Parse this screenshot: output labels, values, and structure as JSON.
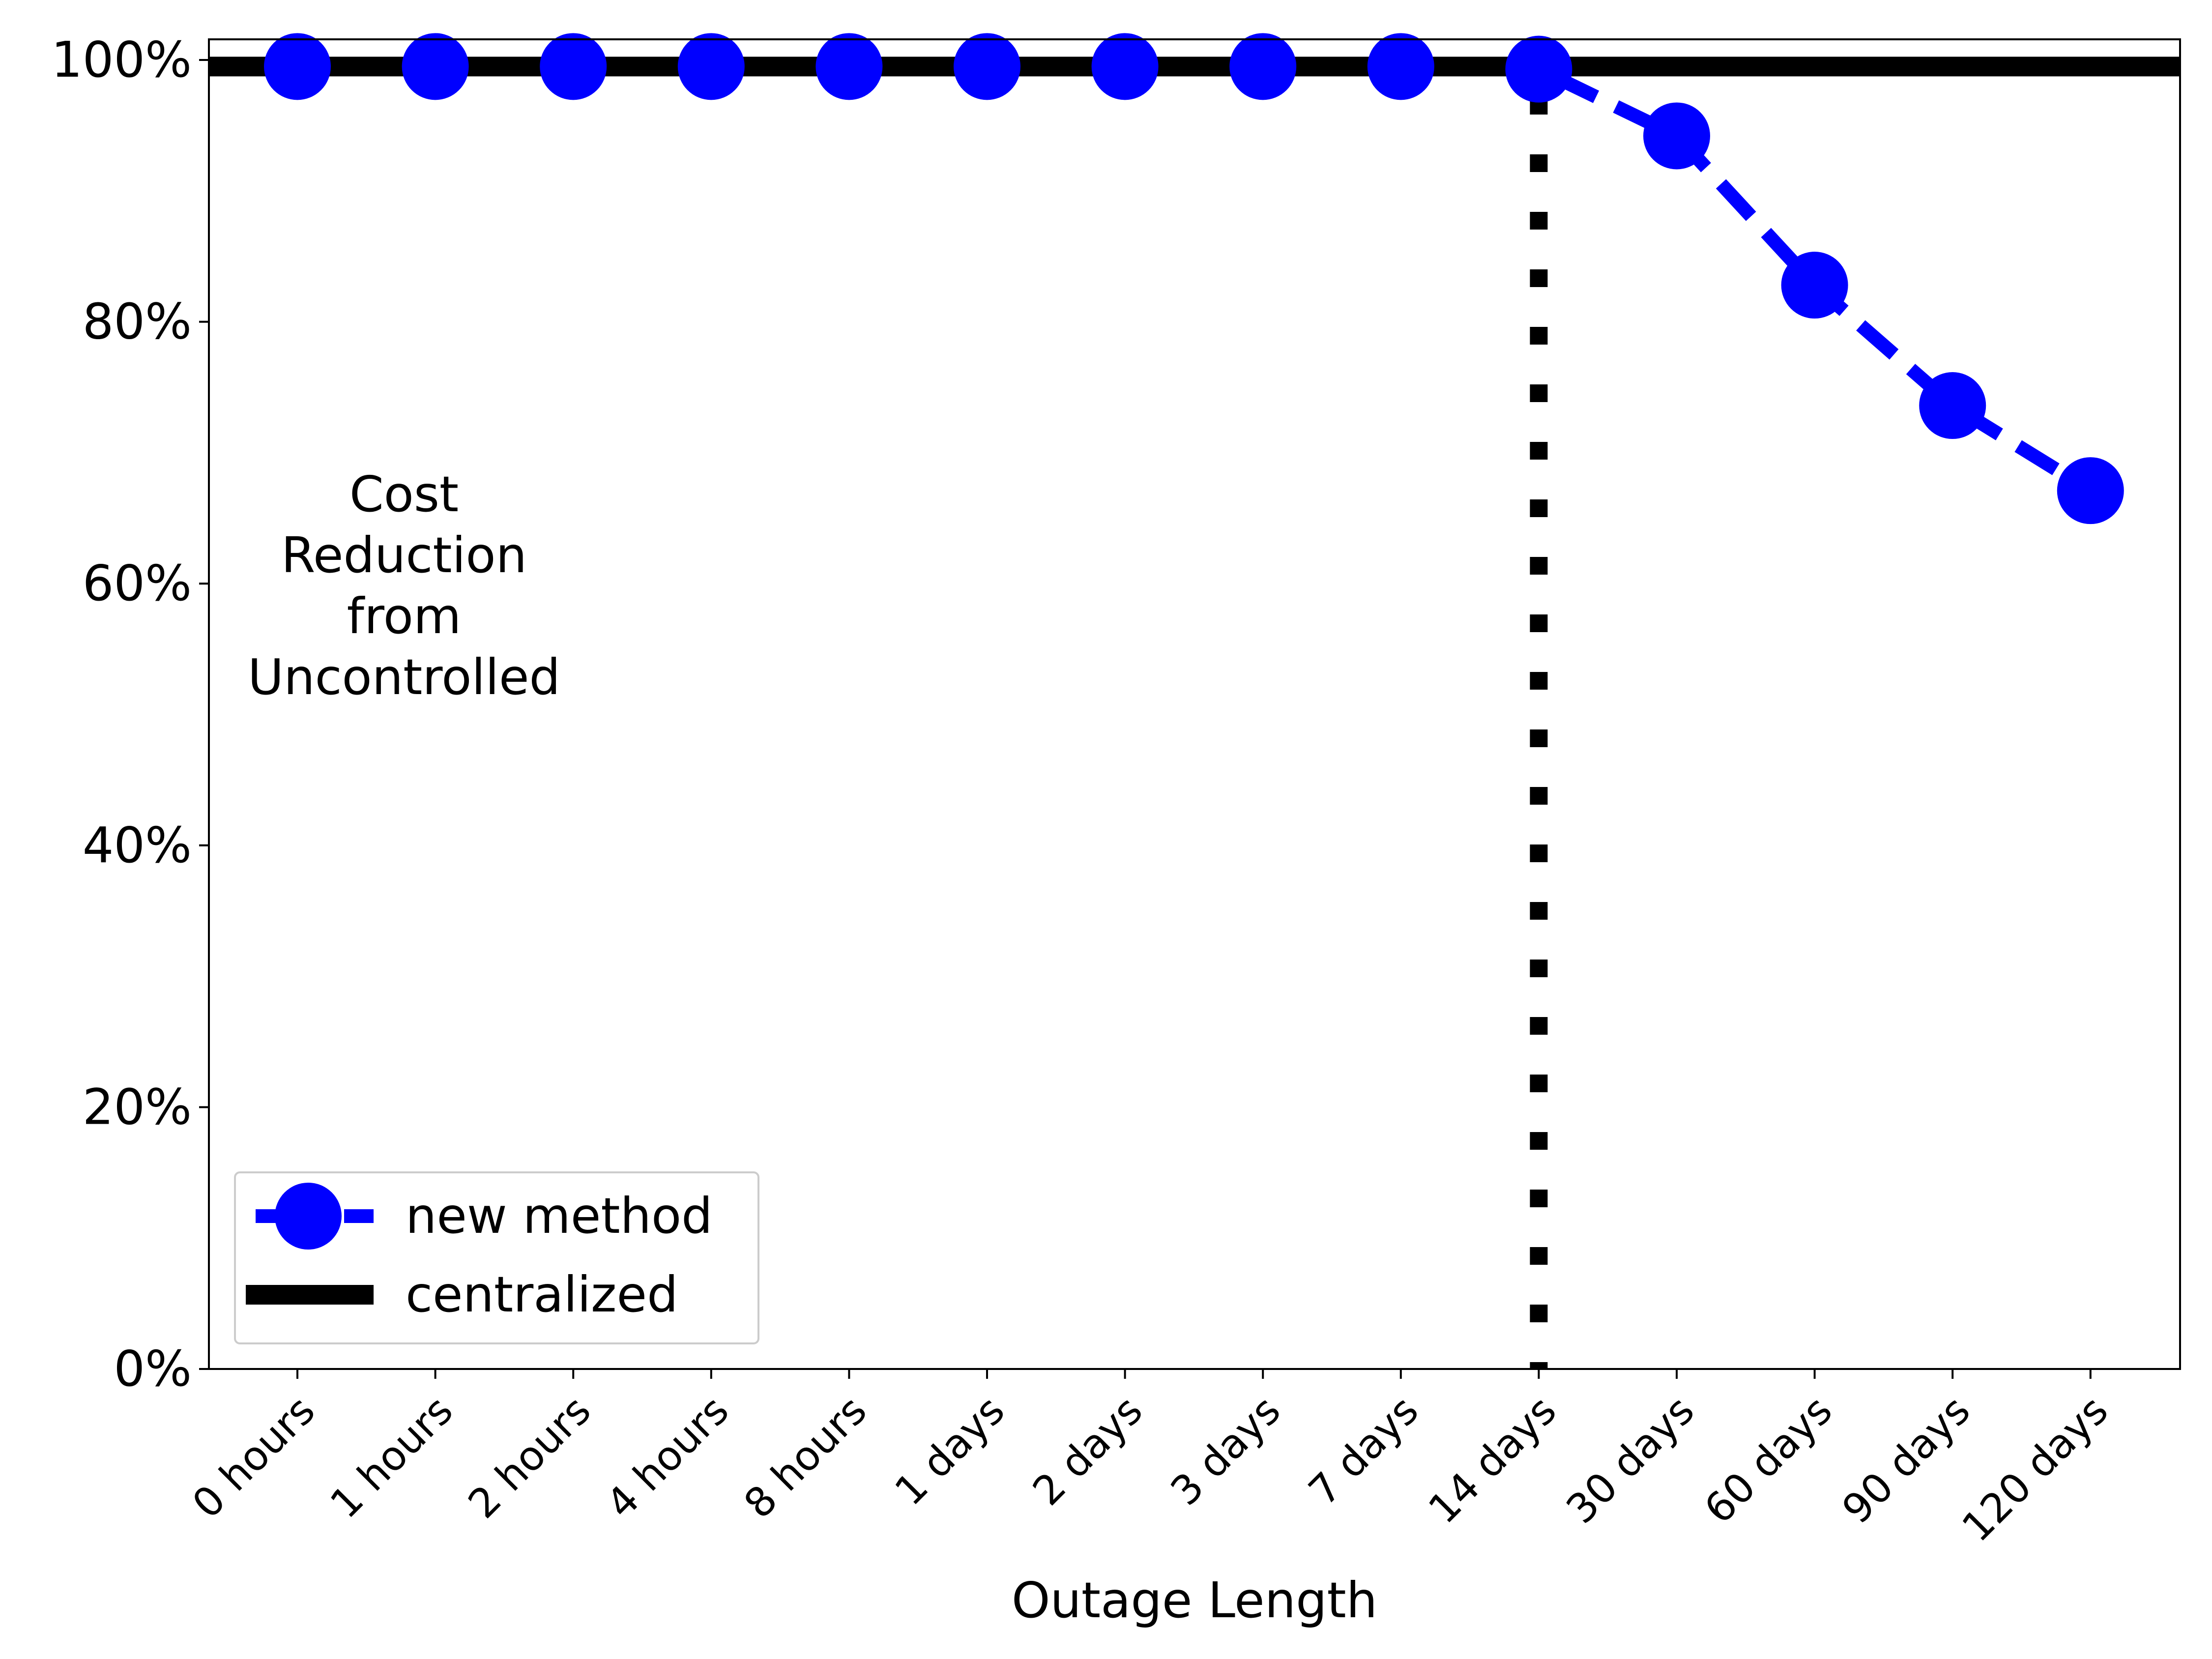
{
  "chart_data": {
    "type": "line",
    "title": "",
    "xlabel": "Outage Length",
    "ylabel": "",
    "categories": [
      "0 hours",
      "1 hours",
      "2 hours",
      "4 hours",
      "8 hours",
      "1 days",
      "2 days",
      "3 days",
      "7 days",
      "14 days",
      "30 days",
      "60 days",
      "90 days",
      "120 days"
    ],
    "yticks": [
      "0%",
      "20%",
      "40%",
      "60%",
      "80%",
      "100%"
    ],
    "ylim": [
      0,
      100
    ],
    "grid": false,
    "legend_position": "lower-left",
    "annotation": [
      "Cost",
      "Reduction",
      "from",
      "Uncontrolled"
    ],
    "vertical_marker_category": "14 days",
    "series": [
      {
        "name": "new method",
        "color": "#0000ff",
        "style": "dashed line with large circle markers",
        "values": [
          99.5,
          99.5,
          99.5,
          99.5,
          99.5,
          99.5,
          99.5,
          99.5,
          99.5,
          99.3,
          94.2,
          82.8,
          73.6,
          67.1
        ]
      },
      {
        "name": "centralized",
        "color": "#000000",
        "style": "thick solid horizontal line",
        "values": [
          99.5,
          99.5,
          99.5,
          99.5,
          99.5,
          99.5,
          99.5,
          99.5,
          99.5,
          99.5,
          99.5,
          99.5,
          99.5,
          99.5
        ]
      }
    ]
  }
}
